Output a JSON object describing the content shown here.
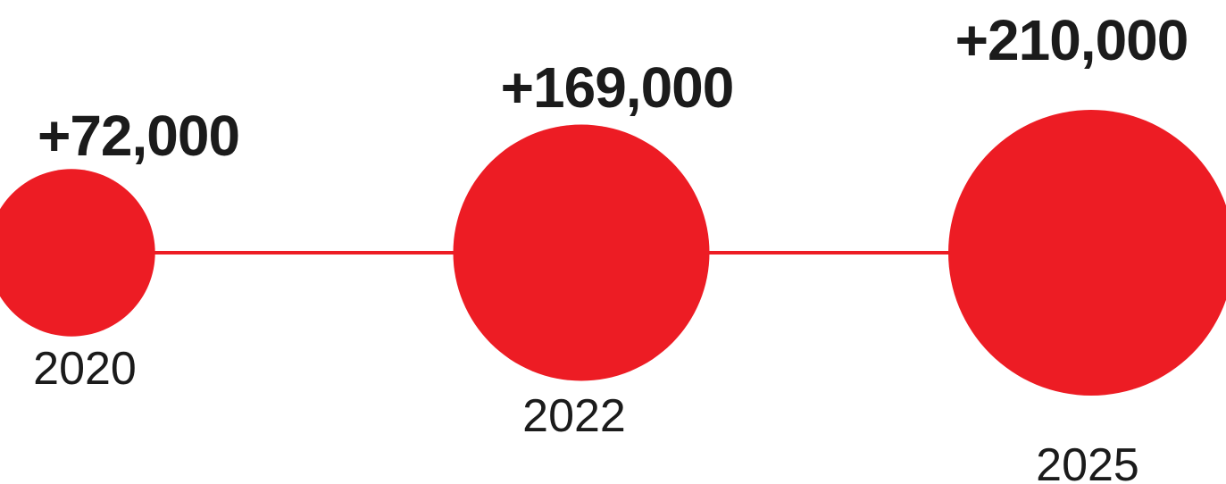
{
  "chart_data": {
    "type": "scatter",
    "x": [
      "2020",
      "2022",
      "2025"
    ],
    "series": [
      {
        "values": [
          72000,
          169000,
          210000
        ],
        "value_labels": [
          "+72,000",
          "+169,000",
          "+210,000"
        ]
      }
    ],
    "title": "",
    "xlabel": "",
    "ylabel": "",
    "grid": false,
    "legend": "none",
    "colors": {
      "marker": "#ed1c24",
      "connector": "#ed1c24",
      "text": "#1b1b1b"
    }
  }
}
